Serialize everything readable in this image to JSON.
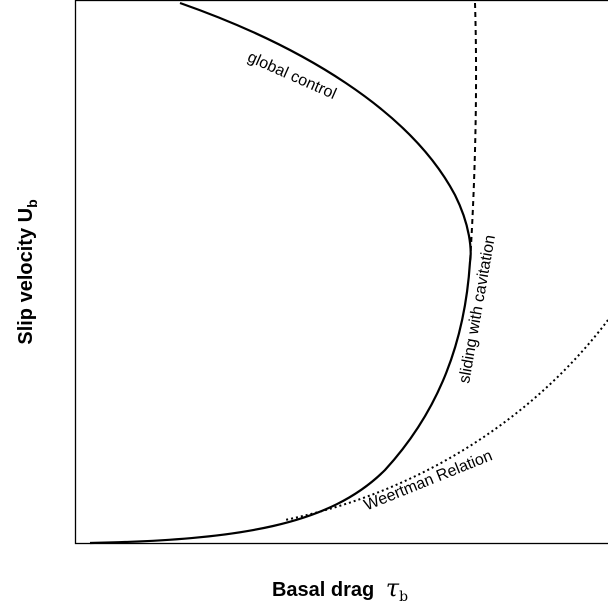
{
  "axes": {
    "x_label": {
      "text": "Basal drag",
      "symbol": "τ",
      "subscript": "b"
    },
    "y_label": {
      "text": "Slip velocity U",
      "subscript": "b"
    }
  },
  "annotations": [
    "global control",
    "sliding with cavitation",
    "Weertman Relation"
  ]
}
